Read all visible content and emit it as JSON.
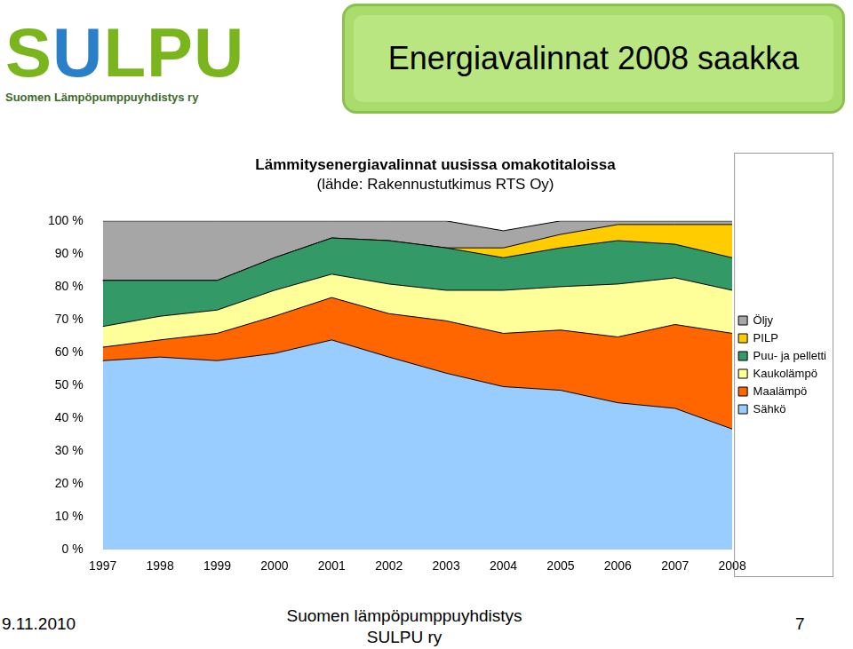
{
  "slide": {
    "title": "Energiavalinnat 2008 saakka",
    "logo": "SULPU",
    "logo_subtitle": "Suomen Lämpöpumppuyhdistys ry",
    "footer_date": "9.11.2010",
    "footer_org": [
      "Suomen lämpöpumppuyhdistys",
      "SULPU ry"
    ],
    "page": "7"
  },
  "chart_data": {
    "type": "area",
    "stacked": true,
    "title": "Lämmitysenergiavalinnat uusissa omakotitaloissa",
    "subtitle": "(lähde: Rakennustutkimus RTS Oy)",
    "categories": [
      "1997",
      "1998",
      "1999",
      "2000",
      "2001",
      "2002",
      "2003",
      "2004",
      "2005",
      "2006",
      "2007",
      "2008"
    ],
    "series": [
      {
        "name": "Sähkö",
        "color": "#99ccff",
        "values": [
          57.5,
          58.6,
          57.5,
          59.7,
          63.8,
          58.6,
          53.7,
          49.6,
          48.5,
          44.7,
          43.0,
          36.7
        ]
      },
      {
        "name": "Maalämpö",
        "color": "#ff6600",
        "values": [
          4.1,
          5.2,
          8.3,
          11.3,
          12.9,
          13.2,
          15.9,
          16.2,
          18.3,
          20.0,
          25.5,
          29.1
        ]
      },
      {
        "name": "Kaukolämpö",
        "color": "#ffff99",
        "values": [
          6.3,
          7.2,
          7.1,
          7.9,
          7.1,
          9.0,
          9.3,
          13.1,
          13.2,
          16.1,
          14.2,
          13.1
        ]
      },
      {
        "name": "Puu- ja pelletti",
        "color": "#339966",
        "values": [
          14.0,
          10.9,
          9.0,
          9.9,
          11.0,
          13.2,
          12.9,
          9.9,
          11.8,
          13.2,
          10.2,
          9.9
        ]
      },
      {
        "name": "PILP",
        "color": "#ffcc00",
        "values": [
          0,
          0,
          0,
          0,
          0,
          0,
          0,
          3.0,
          4.1,
          4.9,
          6.0,
          10.1
        ]
      },
      {
        "name": "Öljy",
        "color": "#a6a6a6",
        "values": [
          18.1,
          18.1,
          18.1,
          11.2,
          5.2,
          6.0,
          8.2,
          5.2,
          4.1,
          1.1,
          1.1,
          1.1
        ]
      }
    ],
    "ylim": [
      0,
      100
    ],
    "yticks": [
      {
        "value": 0,
        "label": "0 %"
      },
      {
        "value": 10,
        "label": "10 %"
      },
      {
        "value": 20,
        "label": "20 %"
      },
      {
        "value": 30,
        "label": "30 %"
      },
      {
        "value": 40,
        "label": "40 %"
      },
      {
        "value": 50,
        "label": "50 %"
      },
      {
        "value": 60,
        "label": "60 %"
      },
      {
        "value": 70,
        "label": "70 %"
      },
      {
        "value": 80,
        "label": "80 %"
      },
      {
        "value": 90,
        "label": "90 %"
      },
      {
        "value": 100,
        "label": "100 %"
      }
    ],
    "grid": false,
    "legend": "right"
  }
}
